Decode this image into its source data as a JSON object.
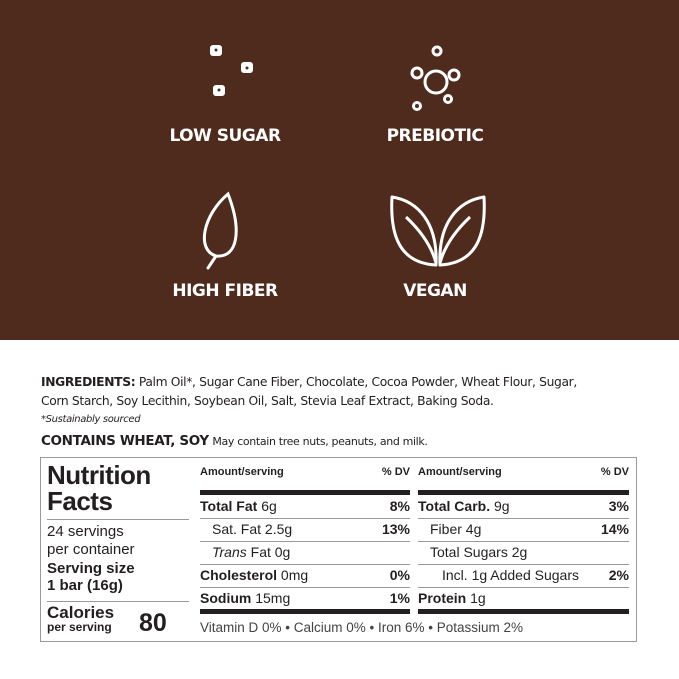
{
  "badges": [
    {
      "label": "LOW SUGAR",
      "icon": "sugar-cubes-icon"
    },
    {
      "label": "PREBIOTIC",
      "icon": "molecule-icon"
    },
    {
      "label": "HIGH FIBER",
      "icon": "leaf-icon"
    },
    {
      "label": "VEGAN",
      "icon": "two-leaves-icon"
    }
  ],
  "ingredients": {
    "heading": "INGREDIENTS:",
    "line1": "Palm Oil*, Sugar Cane Fiber,  Chocolate, Cocoa Powder,  Wheat Flour, Sugar,",
    "line2": "Corn Starch, Soy Lecithin, Soybean Oil, Salt, Stevia Leaf Extract, Baking Soda.",
    "footnote": "*Sustainably sourced",
    "contains": "CONTAINS WHEAT, SOY",
    "may_contain": "May contain tree nuts, peanuts, and milk."
  },
  "nutrition": {
    "title1": "Nutrition",
    "title2": "Facts",
    "servings1": "24 servings",
    "servings2": "per container",
    "serving_size1": "Serving size",
    "serving_size2": "1 bar (16g)",
    "calories_label": "Calories",
    "per_serving": "per serving",
    "calories": "80",
    "amount_header": "Amount/serving",
    "dv_header": "% DV",
    "left": [
      {
        "name": "Total Fat",
        "amount": "6g",
        "dv": "8%",
        "bold": true
      },
      {
        "name": "Sat. Fat",
        "amount": "2.5g",
        "dv": "13%"
      },
      {
        "name": "Trans",
        "amount": "Fat 0g",
        "dv": ""
      },
      {
        "name": "Cholesterol",
        "amount": "0mg",
        "dv": "0%",
        "bold": true
      },
      {
        "name": "Sodium",
        "amount": "15mg",
        "dv": "1%",
        "bold": true
      }
    ],
    "right": [
      {
        "name": "Total Carb.",
        "amount": "9g",
        "dv": "3%",
        "bold": true
      },
      {
        "name": "Fiber",
        "amount": "4g",
        "dv": "14%"
      },
      {
        "name": "Total Sugars",
        "amount": "2g",
        "dv": ""
      },
      {
        "name": "Incl. 1g Added Sugars",
        "amount": "",
        "dv": "2%"
      },
      {
        "name": "Protein",
        "amount": "1g",
        "dv": "",
        "bold": true
      }
    ],
    "vitamins": "Vitamin D 0% • Calcium 0% • Iron 6% • Potassium 2%"
  },
  "colors": {
    "brown": "#4f2b1d",
    "text": "#231f20"
  }
}
